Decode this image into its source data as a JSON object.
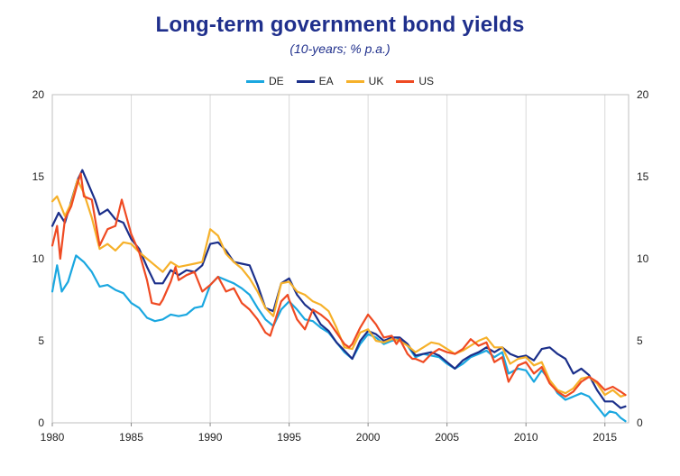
{
  "chart_data": {
    "type": "line",
    "title": "Long-term government bond yields",
    "subtitle": "(10-years; % p.a.)",
    "xlabel": "",
    "ylabel": "",
    "xlim": [
      1980,
      2016.5
    ],
    "ylim": [
      0,
      20
    ],
    "x_ticks": [
      1980,
      1985,
      1990,
      1995,
      2000,
      2005,
      2010,
      2015
    ],
    "y_ticks": [
      0,
      5,
      10,
      15,
      20
    ],
    "grid": "vertical",
    "legend_position": "top-center",
    "series": [
      {
        "name": "DE",
        "color": "#1aa7e0",
        "points": [
          [
            1980.0,
            8.0
          ],
          [
            1980.3,
            9.6
          ],
          [
            1980.6,
            8.0
          ],
          [
            1981.0,
            8.6
          ],
          [
            1981.5,
            10.2
          ],
          [
            1982.0,
            9.8
          ],
          [
            1982.5,
            9.2
          ],
          [
            1983.0,
            8.3
          ],
          [
            1983.5,
            8.4
          ],
          [
            1984.0,
            8.1
          ],
          [
            1984.5,
            7.9
          ],
          [
            1985.0,
            7.3
          ],
          [
            1985.5,
            7.0
          ],
          [
            1986.0,
            6.4
          ],
          [
            1986.5,
            6.2
          ],
          [
            1987.0,
            6.3
          ],
          [
            1987.5,
            6.6
          ],
          [
            1988.0,
            6.5
          ],
          [
            1988.5,
            6.6
          ],
          [
            1989.0,
            7.0
          ],
          [
            1989.5,
            7.1
          ],
          [
            1990.0,
            8.4
          ],
          [
            1990.5,
            8.9
          ],
          [
            1991.0,
            8.7
          ],
          [
            1991.5,
            8.5
          ],
          [
            1992.0,
            8.2
          ],
          [
            1992.5,
            7.8
          ],
          [
            1993.0,
            7.0
          ],
          [
            1993.5,
            6.3
          ],
          [
            1994.0,
            5.9
          ],
          [
            1994.5,
            6.9
          ],
          [
            1995.0,
            7.4
          ],
          [
            1995.5,
            6.9
          ],
          [
            1996.0,
            6.3
          ],
          [
            1996.5,
            6.2
          ],
          [
            1997.0,
            5.8
          ],
          [
            1997.5,
            5.5
          ],
          [
            1998.0,
            4.9
          ],
          [
            1998.5,
            4.3
          ],
          [
            1999.0,
            3.9
          ],
          [
            1999.5,
            4.8
          ],
          [
            2000.0,
            5.4
          ],
          [
            2000.5,
            5.2
          ],
          [
            2001.0,
            4.8
          ],
          [
            2001.5,
            5.0
          ],
          [
            2002.0,
            5.1
          ],
          [
            2002.5,
            4.7
          ],
          [
            2003.0,
            4.0
          ],
          [
            2003.5,
            4.2
          ],
          [
            2004.0,
            4.1
          ],
          [
            2004.5,
            4.0
          ],
          [
            2005.0,
            3.6
          ],
          [
            2005.5,
            3.3
          ],
          [
            2006.0,
            3.6
          ],
          [
            2006.5,
            4.0
          ],
          [
            2007.0,
            4.2
          ],
          [
            2007.5,
            4.4
          ],
          [
            2008.0,
            4.0
          ],
          [
            2008.5,
            4.3
          ],
          [
            2008.9,
            3.0
          ],
          [
            2009.5,
            3.3
          ],
          [
            2010.0,
            3.2
          ],
          [
            2010.5,
            2.5
          ],
          [
            2011.0,
            3.2
          ],
          [
            2011.5,
            2.6
          ],
          [
            2012.0,
            1.8
          ],
          [
            2012.5,
            1.4
          ],
          [
            2013.0,
            1.6
          ],
          [
            2013.5,
            1.8
          ],
          [
            2014.0,
            1.6
          ],
          [
            2014.5,
            1.0
          ],
          [
            2015.0,
            0.4
          ],
          [
            2015.3,
            0.7
          ],
          [
            2015.7,
            0.6
          ],
          [
            2016.0,
            0.3
          ],
          [
            2016.3,
            0.1
          ]
        ]
      },
      {
        "name": "EA",
        "color": "#1b2f8a",
        "points": [
          [
            1980.0,
            12.0
          ],
          [
            1980.4,
            12.8
          ],
          [
            1980.8,
            12.2
          ],
          [
            1981.2,
            13.5
          ],
          [
            1981.6,
            14.8
          ],
          [
            1981.9,
            15.4
          ],
          [
            1982.3,
            14.5
          ],
          [
            1982.7,
            13.6
          ],
          [
            1983.0,
            12.7
          ],
          [
            1983.5,
            13.0
          ],
          [
            1984.0,
            12.4
          ],
          [
            1984.5,
            12.2
          ],
          [
            1985.0,
            11.2
          ],
          [
            1985.5,
            10.6
          ],
          [
            1986.0,
            9.5
          ],
          [
            1986.5,
            8.5
          ],
          [
            1987.0,
            8.5
          ],
          [
            1987.5,
            9.3
          ],
          [
            1988.0,
            9.0
          ],
          [
            1988.5,
            9.3
          ],
          [
            1989.0,
            9.2
          ],
          [
            1989.5,
            9.6
          ],
          [
            1990.0,
            10.9
          ],
          [
            1990.5,
            11.0
          ],
          [
            1991.0,
            10.5
          ],
          [
            1991.5,
            9.8
          ],
          [
            1992.0,
            9.7
          ],
          [
            1992.5,
            9.6
          ],
          [
            1993.0,
            8.4
          ],
          [
            1993.5,
            7.0
          ],
          [
            1994.0,
            6.8
          ],
          [
            1994.5,
            8.5
          ],
          [
            1995.0,
            8.8
          ],
          [
            1995.5,
            7.8
          ],
          [
            1996.0,
            7.2
          ],
          [
            1996.5,
            6.8
          ],
          [
            1997.0,
            6.0
          ],
          [
            1997.5,
            5.6
          ],
          [
            1998.0,
            4.9
          ],
          [
            1998.5,
            4.4
          ],
          [
            1999.0,
            3.9
          ],
          [
            1999.5,
            5.0
          ],
          [
            2000.0,
            5.6
          ],
          [
            2000.5,
            5.4
          ],
          [
            2001.0,
            5.0
          ],
          [
            2001.5,
            5.2
          ],
          [
            2002.0,
            5.2
          ],
          [
            2002.5,
            4.8
          ],
          [
            2003.0,
            4.1
          ],
          [
            2003.5,
            4.2
          ],
          [
            2004.0,
            4.3
          ],
          [
            2004.5,
            4.1
          ],
          [
            2005.0,
            3.7
          ],
          [
            2005.5,
            3.3
          ],
          [
            2006.0,
            3.8
          ],
          [
            2006.5,
            4.1
          ],
          [
            2007.0,
            4.3
          ],
          [
            2007.5,
            4.6
          ],
          [
            2008.0,
            4.3
          ],
          [
            2008.5,
            4.6
          ],
          [
            2009.0,
            4.2
          ],
          [
            2009.5,
            4.0
          ],
          [
            2010.0,
            4.1
          ],
          [
            2010.5,
            3.8
          ],
          [
            2011.0,
            4.5
          ],
          [
            2011.5,
            4.6
          ],
          [
            2012.0,
            4.2
          ],
          [
            2012.5,
            3.9
          ],
          [
            2013.0,
            3.0
          ],
          [
            2013.5,
            3.3
          ],
          [
            2014.0,
            2.9
          ],
          [
            2014.5,
            2.0
          ],
          [
            2015.0,
            1.3
          ],
          [
            2015.5,
            1.3
          ],
          [
            2016.0,
            0.9
          ],
          [
            2016.3,
            1.0
          ]
        ]
      },
      {
        "name": "UK",
        "color": "#f6b12a",
        "points": [
          [
            1980.0,
            13.5
          ],
          [
            1980.3,
            13.8
          ],
          [
            1980.8,
            12.6
          ],
          [
            1981.2,
            13.4
          ],
          [
            1981.6,
            14.8
          ],
          [
            1982.0,
            14.0
          ],
          [
            1982.5,
            12.5
          ],
          [
            1983.0,
            10.6
          ],
          [
            1983.5,
            10.9
          ],
          [
            1984.0,
            10.5
          ],
          [
            1984.5,
            11.0
          ],
          [
            1985.0,
            10.9
          ],
          [
            1985.5,
            10.4
          ],
          [
            1986.0,
            10.0
          ],
          [
            1986.5,
            9.6
          ],
          [
            1987.0,
            9.2
          ],
          [
            1987.5,
            9.8
          ],
          [
            1988.0,
            9.5
          ],
          [
            1988.5,
            9.6
          ],
          [
            1989.0,
            9.7
          ],
          [
            1989.5,
            9.8
          ],
          [
            1990.0,
            11.8
          ],
          [
            1990.5,
            11.4
          ],
          [
            1991.0,
            10.3
          ],
          [
            1991.5,
            9.8
          ],
          [
            1992.0,
            9.4
          ],
          [
            1992.5,
            8.8
          ],
          [
            1993.0,
            8.0
          ],
          [
            1993.5,
            7.0
          ],
          [
            1994.0,
            6.5
          ],
          [
            1994.5,
            8.5
          ],
          [
            1995.0,
            8.6
          ],
          [
            1995.5,
            8.0
          ],
          [
            1996.0,
            7.8
          ],
          [
            1996.5,
            7.4
          ],
          [
            1997.0,
            7.2
          ],
          [
            1997.5,
            6.8
          ],
          [
            1998.0,
            5.8
          ],
          [
            1998.5,
            4.6
          ],
          [
            1999.0,
            4.5
          ],
          [
            1999.5,
            5.5
          ],
          [
            2000.0,
            5.7
          ],
          [
            2000.5,
            5.0
          ],
          [
            2001.0,
            4.9
          ],
          [
            2001.5,
            5.1
          ],
          [
            2002.0,
            5.0
          ],
          [
            2002.5,
            4.7
          ],
          [
            2003.0,
            4.3
          ],
          [
            2003.5,
            4.6
          ],
          [
            2004.0,
            4.9
          ],
          [
            2004.5,
            4.8
          ],
          [
            2005.0,
            4.5
          ],
          [
            2005.5,
            4.2
          ],
          [
            2006.0,
            4.4
          ],
          [
            2006.5,
            4.7
          ],
          [
            2007.0,
            5.0
          ],
          [
            2007.5,
            5.2
          ],
          [
            2008.0,
            4.6
          ],
          [
            2008.5,
            4.6
          ],
          [
            2009.0,
            3.6
          ],
          [
            2009.5,
            3.9
          ],
          [
            2010.0,
            4.0
          ],
          [
            2010.5,
            3.5
          ],
          [
            2011.0,
            3.7
          ],
          [
            2011.5,
            2.6
          ],
          [
            2012.0,
            2.0
          ],
          [
            2012.5,
            1.8
          ],
          [
            2013.0,
            2.1
          ],
          [
            2013.5,
            2.7
          ],
          [
            2014.0,
            2.8
          ],
          [
            2014.5,
            2.4
          ],
          [
            2015.0,
            1.7
          ],
          [
            2015.5,
            2.0
          ],
          [
            2016.0,
            1.6
          ],
          [
            2016.3,
            1.7
          ]
        ]
      },
      {
        "name": "US",
        "color": "#ef4a22",
        "points": [
          [
            1980.0,
            10.8
          ],
          [
            1980.3,
            12.0
          ],
          [
            1980.5,
            10.0
          ],
          [
            1980.8,
            12.4
          ],
          [
            1981.2,
            13.2
          ],
          [
            1981.6,
            14.6
          ],
          [
            1981.8,
            15.2
          ],
          [
            1982.0,
            13.8
          ],
          [
            1982.5,
            13.6
          ],
          [
            1983.0,
            10.8
          ],
          [
            1983.5,
            11.8
          ],
          [
            1984.0,
            12.0
          ],
          [
            1984.4,
            13.6
          ],
          [
            1984.8,
            12.2
          ],
          [
            1985.0,
            11.5
          ],
          [
            1985.5,
            10.4
          ],
          [
            1986.0,
            8.7
          ],
          [
            1986.3,
            7.3
          ],
          [
            1986.8,
            7.2
          ],
          [
            1987.0,
            7.5
          ],
          [
            1987.5,
            8.6
          ],
          [
            1987.8,
            9.5
          ],
          [
            1988.0,
            8.7
          ],
          [
            1988.5,
            9.0
          ],
          [
            1989.0,
            9.2
          ],
          [
            1989.5,
            8.0
          ],
          [
            1990.0,
            8.4
          ],
          [
            1990.5,
            8.9
          ],
          [
            1991.0,
            8.0
          ],
          [
            1991.5,
            8.2
          ],
          [
            1992.0,
            7.3
          ],
          [
            1992.5,
            6.9
          ],
          [
            1993.0,
            6.3
          ],
          [
            1993.5,
            5.5
          ],
          [
            1993.8,
            5.3
          ],
          [
            1994.0,
            5.9
          ],
          [
            1994.5,
            7.4
          ],
          [
            1994.9,
            7.8
          ],
          [
            1995.0,
            7.5
          ],
          [
            1995.5,
            6.3
          ],
          [
            1996.0,
            5.7
          ],
          [
            1996.5,
            6.9
          ],
          [
            1997.0,
            6.6
          ],
          [
            1997.5,
            6.2
          ],
          [
            1998.0,
            5.5
          ],
          [
            1998.5,
            4.8
          ],
          [
            1998.8,
            4.6
          ],
          [
            1999.0,
            4.8
          ],
          [
            1999.5,
            5.8
          ],
          [
            2000.0,
            6.6
          ],
          [
            2000.5,
            6.0
          ],
          [
            2001.0,
            5.2
          ],
          [
            2001.5,
            5.3
          ],
          [
            2001.8,
            4.8
          ],
          [
            2002.0,
            5.1
          ],
          [
            2002.5,
            4.2
          ],
          [
            2002.8,
            3.9
          ],
          [
            2003.0,
            3.9
          ],
          [
            2003.5,
            3.7
          ],
          [
            2004.0,
            4.2
          ],
          [
            2004.5,
            4.5
          ],
          [
            2005.0,
            4.3
          ],
          [
            2005.5,
            4.2
          ],
          [
            2006.0,
            4.5
          ],
          [
            2006.5,
            5.1
          ],
          [
            2007.0,
            4.7
          ],
          [
            2007.5,
            4.9
          ],
          [
            2008.0,
            3.7
          ],
          [
            2008.5,
            4.0
          ],
          [
            2008.9,
            2.5
          ],
          [
            2009.5,
            3.5
          ],
          [
            2010.0,
            3.7
          ],
          [
            2010.5,
            3.0
          ],
          [
            2011.0,
            3.4
          ],
          [
            2011.5,
            2.4
          ],
          [
            2012.0,
            1.9
          ],
          [
            2012.5,
            1.6
          ],
          [
            2013.0,
            1.9
          ],
          [
            2013.5,
            2.5
          ],
          [
            2014.0,
            2.8
          ],
          [
            2014.5,
            2.5
          ],
          [
            2015.0,
            2.0
          ],
          [
            2015.5,
            2.2
          ],
          [
            2016.0,
            1.9
          ],
          [
            2016.3,
            1.7
          ]
        ]
      }
    ]
  }
}
